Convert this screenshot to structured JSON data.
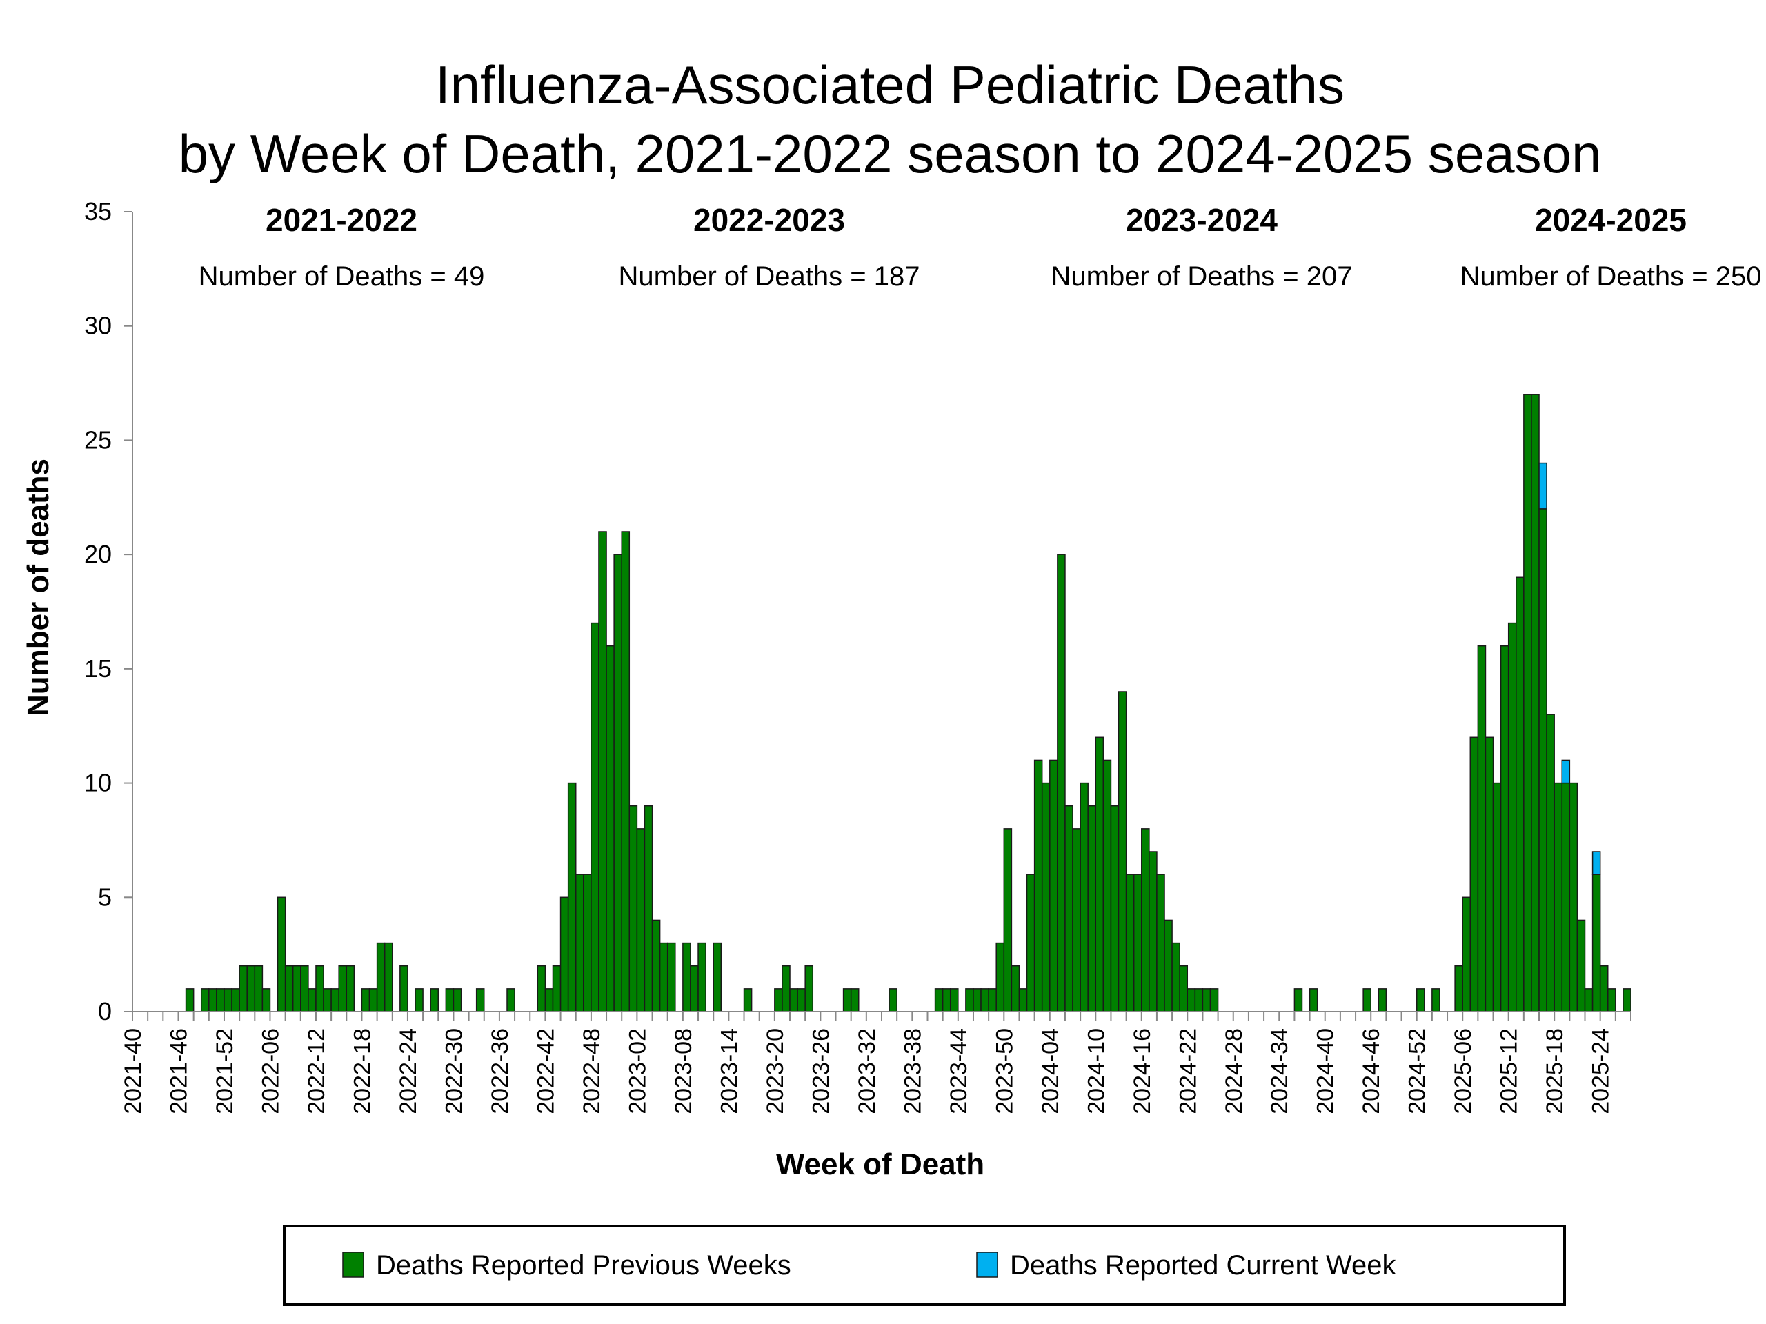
{
  "chart_data": {
    "type": "bar",
    "stacked": true,
    "title": "Influenza-Associated Pediatric Deaths",
    "subtitle": "by Week of Death, 2021-2022 season to 2024-2025 season",
    "xlabel": "Week of Death",
    "ylabel": "Number of deaths",
    "ylim": [
      0,
      35
    ],
    "yticks": [
      0,
      5,
      10,
      15,
      20,
      25,
      30,
      35
    ],
    "xtick_labels": [
      "2021-40",
      "2021-46",
      "2021-52",
      "2022-06",
      "2022-12",
      "2022-18",
      "2022-24",
      "2022-30",
      "2022-36",
      "2022-42",
      "2022-48",
      "2023-02",
      "2023-08",
      "2023-14",
      "2023-20",
      "2023-26",
      "2023-32",
      "2023-38",
      "2023-44",
      "2023-50",
      "2024-04",
      "2024-10",
      "2024-16",
      "2024-22",
      "2024-28",
      "2024-34",
      "2024-40",
      "2024-46",
      "2024-52",
      "2025-06",
      "2025-12",
      "2025-18",
      "2025-24"
    ],
    "seasons": [
      {
        "label": "2021-2022",
        "count_text": "Number of Deaths = 49"
      },
      {
        "label": "2022-2023",
        "count_text": "Number of Deaths = 187"
      },
      {
        "label": "2023-2024",
        "count_text": "Number of Deaths = 207"
      },
      {
        "label": "2024-2025",
        "count_text": "Number of Deaths = 250"
      }
    ],
    "series": [
      {
        "name": "Deaths Reported Previous Weeks",
        "color": "#008000",
        "values": [
          0,
          0,
          0,
          0,
          0,
          0,
          0,
          1,
          0,
          1,
          1,
          1,
          1,
          1,
          2,
          2,
          2,
          1,
          0,
          5,
          2,
          2,
          2,
          1,
          2,
          1,
          1,
          2,
          2,
          0,
          1,
          1,
          3,
          3,
          0,
          2,
          0,
          1,
          0,
          1,
          0,
          1,
          1,
          0,
          0,
          1,
          0,
          0,
          0,
          1,
          0,
          0,
          0,
          2,
          1,
          2,
          5,
          10,
          6,
          6,
          17,
          21,
          16,
          20,
          21,
          9,
          8,
          9,
          4,
          3,
          3,
          0,
          3,
          2,
          3,
          0,
          3,
          0,
          0,
          0,
          1,
          0,
          0,
          0,
          1,
          2,
          1,
          1,
          2,
          0,
          0,
          0,
          0,
          1,
          1,
          0,
          0,
          0,
          0,
          1,
          0,
          0,
          0,
          0,
          0,
          1,
          1,
          1,
          0,
          1,
          1,
          1,
          1,
          3,
          8,
          2,
          1,
          6,
          11,
          10,
          11,
          20,
          9,
          8,
          10,
          9,
          12,
          11,
          9,
          14,
          6,
          6,
          8,
          7,
          6,
          4,
          3,
          2,
          1,
          1,
          1,
          1,
          0,
          0,
          0,
          0,
          0,
          0,
          0,
          0,
          0,
          0,
          1,
          0,
          1,
          0,
          0,
          0,
          0,
          0,
          0,
          1,
          0,
          1,
          0,
          0,
          0,
          0,
          1,
          0,
          1,
          0,
          0,
          2,
          5,
          12,
          16,
          12,
          10,
          16,
          17,
          19,
          27,
          27,
          22,
          13,
          10,
          10,
          10,
          4,
          1,
          6,
          2,
          1,
          0,
          1
        ]
      },
      {
        "name": "Deaths Reported Current Week",
        "color": "#00b0f0",
        "values": [
          0,
          0,
          0,
          0,
          0,
          0,
          0,
          0,
          0,
          0,
          0,
          0,
          0,
          0,
          0,
          0,
          0,
          0,
          0,
          0,
          0,
          0,
          0,
          0,
          0,
          0,
          0,
          0,
          0,
          0,
          0,
          0,
          0,
          0,
          0,
          0,
          0,
          0,
          0,
          0,
          0,
          0,
          0,
          0,
          0,
          0,
          0,
          0,
          0,
          0,
          0,
          0,
          0,
          0,
          0,
          0,
          0,
          0,
          0,
          0,
          0,
          0,
          0,
          0,
          0,
          0,
          0,
          0,
          0,
          0,
          0,
          0,
          0,
          0,
          0,
          0,
          0,
          0,
          0,
          0,
          0,
          0,
          0,
          0,
          0,
          0,
          0,
          0,
          0,
          0,
          0,
          0,
          0,
          0,
          0,
          0,
          0,
          0,
          0,
          0,
          0,
          0,
          0,
          0,
          0,
          0,
          0,
          0,
          0,
          0,
          0,
          0,
          0,
          0,
          0,
          0,
          0,
          0,
          0,
          0,
          0,
          0,
          0,
          0,
          0,
          0,
          0,
          0,
          0,
          0,
          0,
          0,
          0,
          0,
          0,
          0,
          0,
          0,
          0,
          0,
          0,
          0,
          0,
          0,
          0,
          0,
          0,
          0,
          0,
          0,
          0,
          0,
          0,
          0,
          0,
          0,
          0,
          0,
          0,
          0,
          0,
          0,
          0,
          0,
          0,
          0,
          0,
          0,
          0,
          0,
          0,
          0,
          0,
          0,
          0,
          0,
          0,
          0,
          0,
          0,
          0,
          0,
          0,
          0,
          2,
          0,
          0,
          1,
          0,
          0,
          0,
          1,
          0,
          0,
          0,
          0
        ]
      }
    ],
    "legend": {
      "position": "bottom",
      "items": [
        "Deaths Reported Previous Weeks",
        "Deaths Reported Current Week"
      ]
    }
  }
}
